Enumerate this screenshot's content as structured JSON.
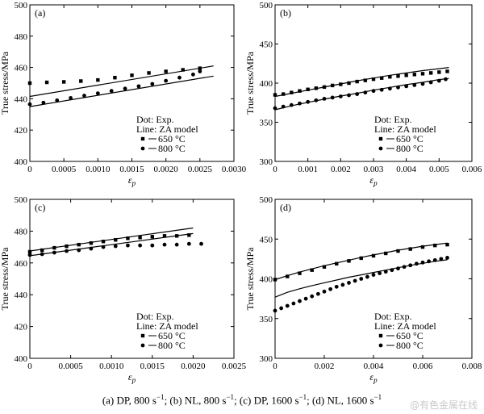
{
  "chart_data": [
    {
      "type": "scatter",
      "panel_label": "(a)",
      "ylabel": "True stress/MPa",
      "xlabel": "ε",
      "xlabel_sub": "p",
      "xlim": [
        0,
        0.003
      ],
      "ylim": [
        400,
        500
      ],
      "xticks": [
        "0",
        "0.0005",
        "0.0010",
        "0.0015",
        "0.0020",
        "0.0025",
        "0.0030"
      ],
      "yticks": [
        "400",
        "420",
        "440",
        "460",
        "480",
        "500"
      ],
      "xtick_values": [
        0,
        0.0005,
        0.001,
        0.0015,
        0.002,
        0.0025,
        0.003
      ],
      "ytick_values": [
        400,
        420,
        440,
        460,
        480,
        500
      ],
      "legend": {
        "title1": "Dot: Exp.",
        "title2": "Line: ZA model",
        "entries": [
          "650 °C",
          "800 °C"
        ]
      },
      "series": [
        {
          "name": "650 °C",
          "marker": "square",
          "points": [
            [
              0,
              450
            ],
            [
              0.00025,
              450.5
            ],
            [
              0.0005,
              450.8
            ],
            [
              0.00075,
              451.3
            ],
            [
              0.001,
              452
            ],
            [
              0.00125,
              453.5
            ],
            [
              0.0015,
              455
            ],
            [
              0.00175,
              456.5
            ],
            [
              0.002,
              457.5
            ],
            [
              0.00225,
              458.5
            ],
            [
              0.0025,
              459.5
            ]
          ],
          "model": [
            [
              0,
              441.5
            ],
            [
              0.0027,
              461
            ]
          ]
        },
        {
          "name": "800 °C",
          "marker": "circle",
          "points": [
            [
              0,
              436.5
            ],
            [
              0.0002,
              437.5
            ],
            [
              0.0004,
              439
            ],
            [
              0.0006,
              440.5
            ],
            [
              0.0008,
              442
            ],
            [
              0.001,
              443.5
            ],
            [
              0.0012,
              445
            ],
            [
              0.0014,
              446.5
            ],
            [
              0.0016,
              448
            ],
            [
              0.0018,
              449.5
            ],
            [
              0.002,
              451.5
            ],
            [
              0.0022,
              453.5
            ],
            [
              0.0024,
              455.5
            ],
            [
              0.0025,
              457.5
            ]
          ],
          "model": [
            [
              0,
              435
            ],
            [
              0.0027,
              454.5
            ]
          ]
        }
      ]
    },
    {
      "type": "scatter",
      "panel_label": "(b)",
      "ylabel": "True stress/MPa",
      "xlabel": "ε",
      "xlabel_sub": "p",
      "xlim": [
        0,
        0.006
      ],
      "ylim": [
        300,
        500
      ],
      "xticks": [
        "0",
        "0.001",
        "0.002",
        "0.003",
        "0.004",
        "0.005",
        "0.006"
      ],
      "yticks": [
        "300",
        "350",
        "400",
        "450",
        "500"
      ],
      "xtick_values": [
        0,
        0.001,
        0.002,
        0.003,
        0.004,
        0.005,
        0.006
      ],
      "ytick_values": [
        300,
        350,
        400,
        450,
        500
      ],
      "legend": {
        "title1": "Dot: Exp.",
        "title2": "Line: ZA model",
        "entries": [
          "650 °C",
          "800 °C"
        ]
      },
      "series": [
        {
          "name": "650 °C",
          "marker": "square",
          "points": [
            [
              0,
              385
            ],
            [
              0.00025,
              386
            ],
            [
              0.0005,
              388
            ],
            [
              0.00075,
              390
            ],
            [
              0.001,
              392
            ],
            [
              0.00125,
              393.5
            ],
            [
              0.0015,
              395
            ],
            [
              0.00175,
              397
            ],
            [
              0.002,
              398.5
            ],
            [
              0.00225,
              400
            ],
            [
              0.0025,
              402
            ],
            [
              0.00275,
              403.5
            ],
            [
              0.003,
              405
            ],
            [
              0.00325,
              406.5
            ],
            [
              0.0035,
              408
            ],
            [
              0.00375,
              409
            ],
            [
              0.004,
              410
            ],
            [
              0.00425,
              411
            ],
            [
              0.0045,
              412
            ],
            [
              0.00475,
              413
            ],
            [
              0.005,
              414
            ],
            [
              0.00525,
              415
            ]
          ],
          "model": [
            [
              0,
              383
            ],
            [
              0.0005,
              387
            ],
            [
              0.001,
              391
            ],
            [
              0.0015,
              395
            ],
            [
              0.002,
              399
            ],
            [
              0.0025,
              403
            ],
            [
              0.003,
              406.5
            ],
            [
              0.0035,
              410
            ],
            [
              0.004,
              413
            ],
            [
              0.0045,
              416
            ],
            [
              0.005,
              418.5
            ],
            [
              0.0053,
              420
            ]
          ]
        },
        {
          "name": "800 °C",
          "marker": "circle",
          "points": [
            [
              0,
              368
            ],
            [
              0.00025,
              370
            ],
            [
              0.0005,
              372
            ],
            [
              0.00075,
              374
            ],
            [
              0.001,
              376
            ],
            [
              0.00125,
              378
            ],
            [
              0.0015,
              380
            ],
            [
              0.00175,
              381.5
            ],
            [
              0.002,
              383
            ],
            [
              0.00225,
              384.5
            ],
            [
              0.0025,
              386
            ],
            [
              0.00275,
              388
            ],
            [
              0.003,
              390
            ],
            [
              0.00325,
              391.5
            ],
            [
              0.0035,
              393
            ],
            [
              0.00375,
              394.5
            ],
            [
              0.004,
              396
            ],
            [
              0.00425,
              397.5
            ],
            [
              0.0045,
              399
            ],
            [
              0.00475,
              401
            ],
            [
              0.005,
              403
            ],
            [
              0.0052,
              405
            ]
          ],
          "model": [
            [
              0,
              366
            ],
            [
              0.0005,
              371
            ],
            [
              0.001,
              375.5
            ],
            [
              0.0015,
              379.5
            ],
            [
              0.002,
              383.5
            ],
            [
              0.0025,
              387
            ],
            [
              0.003,
              391
            ],
            [
              0.0035,
              394.5
            ],
            [
              0.004,
              398
            ],
            [
              0.0045,
              401
            ],
            [
              0.005,
              404.5
            ],
            [
              0.0053,
              406
            ]
          ]
        }
      ]
    },
    {
      "type": "scatter",
      "panel_label": "(c)",
      "ylabel": "True stress/MPa",
      "xlabel": "ε",
      "xlabel_sub": "p",
      "xlim": [
        0,
        0.0025
      ],
      "ylim": [
        400,
        500
      ],
      "xticks": [
        "0",
        "0.0005",
        "0.0010",
        "0.0015",
        "0.0020",
        "0.0025"
      ],
      "yticks": [
        "400",
        "420",
        "440",
        "460",
        "480",
        "500"
      ],
      "xtick_values": [
        0,
        0.0005,
        0.001,
        0.0015,
        0.002,
        0.0025
      ],
      "ytick_values": [
        400,
        420,
        440,
        460,
        480,
        500
      ],
      "legend": {
        "title1": "Dot: Exp.",
        "title2": "Line: ZA model",
        "entries": [
          "650 °C",
          "800 °C"
        ]
      },
      "series": [
        {
          "name": "650 °C",
          "marker": "square",
          "points": [
            [
              0,
              467
            ],
            [
              0.00015,
              468
            ],
            [
              0.0003,
              469.5
            ],
            [
              0.00045,
              470.5
            ],
            [
              0.0006,
              471.5
            ],
            [
              0.00075,
              472.5
            ],
            [
              0.0009,
              473.5
            ],
            [
              0.00105,
              474.5
            ],
            [
              0.0012,
              475.5
            ],
            [
              0.00135,
              476
            ],
            [
              0.0015,
              476.5
            ],
            [
              0.00165,
              477
            ],
            [
              0.0018,
              477
            ],
            [
              0.00195,
              477.5
            ]
          ],
          "model": [
            [
              0,
              467.5
            ],
            [
              0.002,
              482
            ]
          ]
        },
        {
          "name": "800 °C",
          "marker": "circle",
          "points": [
            [
              0,
              465
            ],
            [
              0.00015,
              465.5
            ],
            [
              0.0003,
              466.5
            ],
            [
              0.00045,
              467.5
            ],
            [
              0.0006,
              468
            ],
            [
              0.00075,
              469
            ],
            [
              0.0009,
              470
            ],
            [
              0.00105,
              470.5
            ],
            [
              0.0012,
              471
            ],
            [
              0.00135,
              471
            ],
            [
              0.0015,
              471
            ],
            [
              0.00165,
              471.5
            ],
            [
              0.0018,
              471.5
            ],
            [
              0.00195,
              472
            ],
            [
              0.0021,
              472
            ]
          ],
          "model": [
            [
              0,
              464.5
            ],
            [
              0.002,
              478.5
            ]
          ]
        }
      ]
    },
    {
      "type": "scatter",
      "panel_label": "(d)",
      "ylabel": "True stress/MPa",
      "xlabel": "ε",
      "xlabel_sub": "p",
      "xlim": [
        0,
        0.008
      ],
      "ylim": [
        300,
        500
      ],
      "xticks": [
        "0",
        "0.002",
        "0.004",
        "0.006",
        "0.008"
      ],
      "yticks": [
        "300",
        "350",
        "400",
        "450",
        "500"
      ],
      "xtick_values": [
        0,
        0.002,
        0.004,
        0.006,
        0.008
      ],
      "ytick_values": [
        300,
        350,
        400,
        450,
        500
      ],
      "legend": {
        "title1": "Dot: Exp.",
        "title2": "Line: ZA model",
        "entries": [
          "650 °C",
          "800 °C"
        ]
      },
      "series": [
        {
          "name": "650 °C",
          "marker": "square",
          "points": [
            [
              0,
              399
            ],
            [
              0.0005,
              403
            ],
            [
              0.001,
              407
            ],
            [
              0.0015,
              411
            ],
            [
              0.002,
              415
            ],
            [
              0.0025,
              419
            ],
            [
              0.003,
              422.5
            ],
            [
              0.0035,
              426
            ],
            [
              0.004,
              429
            ],
            [
              0.0045,
              432
            ],
            [
              0.005,
              435
            ],
            [
              0.0055,
              437.5
            ],
            [
              0.006,
              440
            ],
            [
              0.0065,
              442
            ],
            [
              0.007,
              443
            ]
          ],
          "model": [
            [
              0,
              399
            ],
            [
              0.0005,
              404
            ],
            [
              0.001,
              408.5
            ],
            [
              0.0015,
              412.5
            ],
            [
              0.002,
              416.5
            ],
            [
              0.0025,
              420
            ],
            [
              0.003,
              423.5
            ],
            [
              0.0035,
              427
            ],
            [
              0.004,
              430
            ],
            [
              0.0045,
              433
            ],
            [
              0.005,
              436
            ],
            [
              0.0055,
              438.5
            ],
            [
              0.006,
              441
            ],
            [
              0.0065,
              443
            ],
            [
              0.007,
              445
            ]
          ]
        },
        {
          "name": "800 °C",
          "marker": "circle",
          "points": [
            [
              0,
              360
            ],
            [
              0.00025,
              363
            ],
            [
              0.0005,
              366
            ],
            [
              0.00075,
              369
            ],
            [
              0.001,
              372
            ],
            [
              0.00125,
              375
            ],
            [
              0.0015,
              378
            ],
            [
              0.00175,
              381
            ],
            [
              0.002,
              384
            ],
            [
              0.00225,
              387
            ],
            [
              0.0025,
              390
            ],
            [
              0.00275,
              392.5
            ],
            [
              0.003,
              395
            ],
            [
              0.00325,
              397.5
            ],
            [
              0.0035,
              400
            ],
            [
              0.00375,
              402.5
            ],
            [
              0.004,
              405
            ],
            [
              0.00425,
              407
            ],
            [
              0.0045,
              409
            ],
            [
              0.00475,
              411
            ],
            [
              0.005,
              413
            ],
            [
              0.00525,
              415
            ],
            [
              0.0055,
              417
            ],
            [
              0.00575,
              419
            ],
            [
              0.006,
              420.5
            ],
            [
              0.00625,
              422
            ],
            [
              0.0065,
              423.5
            ],
            [
              0.00675,
              425
            ],
            [
              0.007,
              426.5
            ]
          ],
          "model": [
            [
              0,
              377
            ],
            [
              0.0005,
              383
            ],
            [
              0.001,
              387.5
            ],
            [
              0.0015,
              391.5
            ],
            [
              0.002,
              395
            ],
            [
              0.0025,
              398.5
            ],
            [
              0.003,
              402
            ],
            [
              0.0035,
              405
            ],
            [
              0.004,
              408
            ],
            [
              0.0045,
              411
            ],
            [
              0.005,
              414
            ],
            [
              0.0055,
              417
            ],
            [
              0.006,
              419.5
            ],
            [
              0.0065,
              422
            ],
            [
              0.007,
              424
            ]
          ]
        }
      ]
    }
  ],
  "caption": {
    "a": "(a) DP, 800 s",
    "b": "; (b) NL, 800 s",
    "c": "; (c) DP, 1600 s",
    "d": "; (d) NL, 1600 s",
    "sup": "−1"
  },
  "watermark": "@有色金属在线"
}
